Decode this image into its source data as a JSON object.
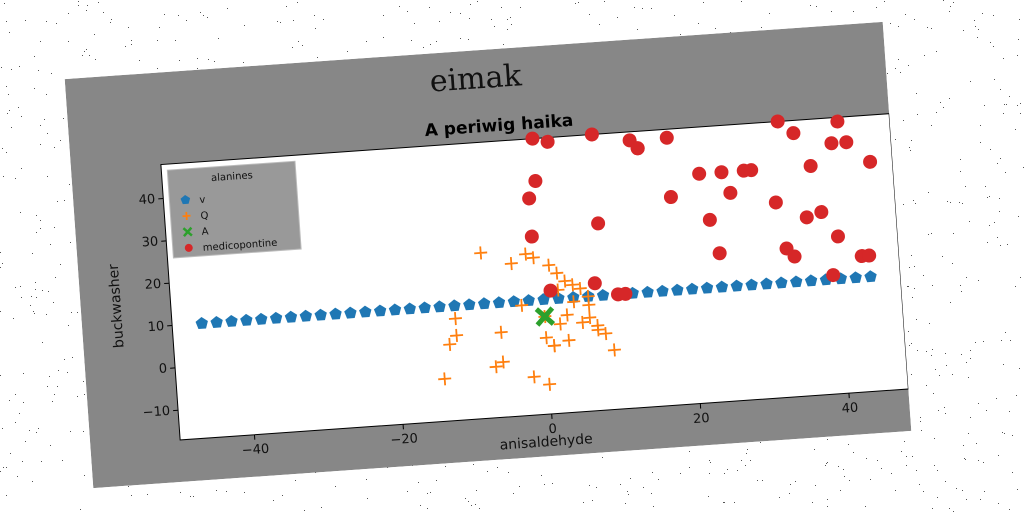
{
  "figure": {
    "suptitle": "eimak",
    "background": "#878787"
  },
  "chart_data": {
    "type": "scatter",
    "title": "A periwig haika",
    "xlabel": "anisaldehyde",
    "ylabel": "buckwasher",
    "xlim": [
      -50,
      48
    ],
    "ylim": [
      -17,
      48
    ],
    "xticks": [
      -40,
      -20,
      0,
      20,
      40
    ],
    "yticks": [
      -10,
      0,
      10,
      20,
      30,
      40
    ],
    "grid": false,
    "legend": {
      "title": "alanines",
      "placement": "top-left"
    },
    "series": [
      {
        "name": "v",
        "marker": "pentagon",
        "color": "#1f77b4",
        "x": [
          -46,
          -44,
          -42,
          -40,
          -38,
          -36,
          -34,
          -32,
          -30,
          -28,
          -26,
          -24,
          -22,
          -20,
          -18,
          -16,
          -14,
          -12,
          -10,
          -8,
          -6,
          -4,
          -2,
          0,
          2,
          4,
          6,
          8,
          10,
          12,
          14,
          16,
          18,
          20,
          22,
          24,
          26,
          28,
          30,
          32,
          34,
          36,
          38,
          40,
          42,
          44
        ],
        "y": [
          10,
          10,
          10,
          10,
          10,
          10,
          10,
          10,
          10,
          10,
          10,
          10,
          10,
          10,
          10,
          10,
          10,
          10,
          10,
          10,
          10,
          10,
          10,
          10,
          10,
          10,
          10,
          10,
          10,
          10,
          10,
          10,
          10,
          10,
          10,
          10,
          10,
          10,
          10,
          10,
          10,
          10,
          10,
          10,
          10,
          10
        ]
      },
      {
        "name": "Q",
        "marker": "plus",
        "color": "#ff7f0e",
        "x": [
          -8,
          -4,
          -2,
          -1,
          1,
          2,
          3,
          4,
          5,
          6,
          -12,
          -13,
          -6,
          0,
          1,
          3,
          5,
          7,
          8,
          9,
          -7,
          -6,
          -14,
          -2,
          0,
          2,
          4,
          6,
          -3,
          1,
          3,
          -12,
          0,
          2,
          6,
          7
        ],
        "y": [
          22,
          19,
          21,
          20,
          18,
          16,
          14,
          13,
          12,
          10,
          3,
          1,
          3,
          1,
          -1,
          6,
          4,
          2,
          1,
          -3,
          -5,
          -4,
          -7,
          -8,
          -10,
          4,
          9,
          8,
          9,
          -1,
          0,
          7,
          6,
          12,
          5,
          3
        ]
      },
      {
        "name": "A",
        "marker": "x",
        "color": "#2ca02c",
        "x": [
          0
        ],
        "y": [
          6
        ]
      },
      {
        "name": "medicopontine",
        "marker": "circle",
        "color": "#d62728",
        "x": [
          0,
          2,
          0,
          -1,
          -1,
          8,
          8,
          7,
          13,
          14,
          14,
          18,
          18,
          22,
          23,
          24,
          25,
          26,
          28,
          29,
          32,
          33,
          33,
          34,
          35,
          36,
          37,
          38,
          39,
          40,
          40,
          41,
          42,
          43,
          44,
          45,
          1,
          10,
          11
        ],
        "y": [
          48,
          47,
          38,
          34,
          25,
          48,
          27,
          13,
          46,
          44,
          44,
          46,
          32,
          37,
          26,
          18,
          37,
          32,
          37,
          37,
          29,
          48,
          18,
          16,
          45,
          25,
          37,
          26,
          11,
          20,
          42,
          47,
          42,
          15,
          15,
          37,
          12,
          10,
          10
        ]
      }
    ]
  }
}
